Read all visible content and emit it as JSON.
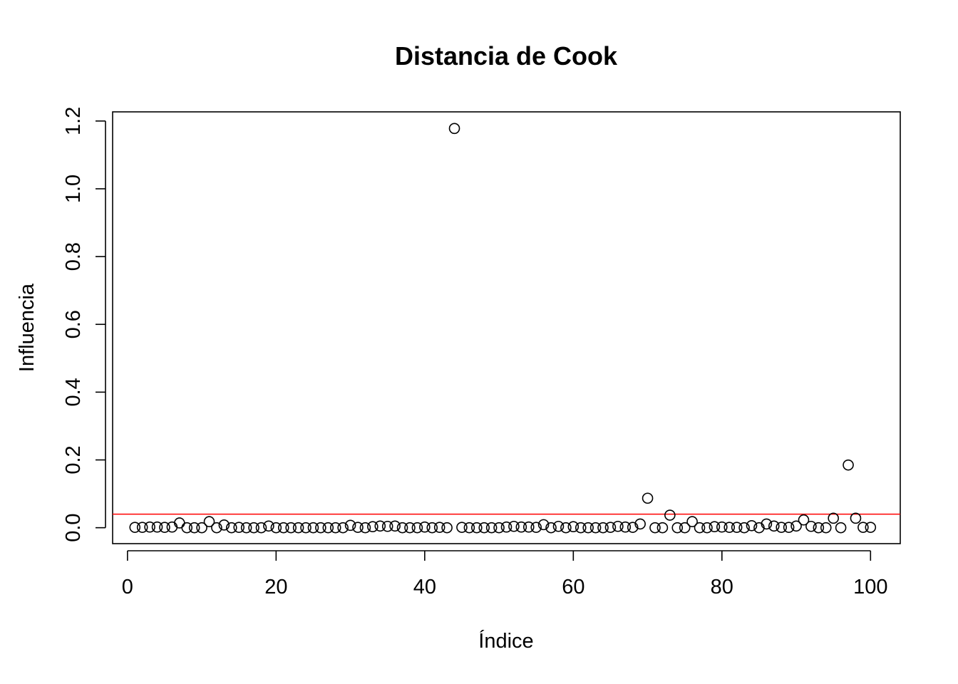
{
  "chart_data": {
    "type": "scatter",
    "title": "Distancia de Cook",
    "xlabel": "Índice",
    "ylabel": "Influencia",
    "xlim": [
      -2,
      104
    ],
    "ylim": [
      -0.047,
      1.227
    ],
    "xticks": [
      0,
      20,
      40,
      60,
      80,
      100
    ],
    "xtick_labels": [
      "0",
      "20",
      "40",
      "60",
      "80",
      "100"
    ],
    "yticks": [
      0.0,
      0.2,
      0.4,
      0.6,
      0.8,
      1.0,
      1.2
    ],
    "ytick_labels": [
      "0.0",
      "0.2",
      "0.4",
      "0.6",
      "0.8",
      "1.0",
      "1.2"
    ],
    "grid": false,
    "point_style": "open-circle",
    "point_color": "#000000",
    "x": [
      1,
      2,
      3,
      4,
      5,
      6,
      7,
      8,
      9,
      10,
      11,
      12,
      13,
      14,
      15,
      16,
      17,
      18,
      19,
      20,
      21,
      22,
      23,
      24,
      25,
      26,
      27,
      28,
      29,
      30,
      31,
      32,
      33,
      34,
      35,
      36,
      37,
      38,
      39,
      40,
      41,
      42,
      43,
      44,
      45,
      46,
      47,
      48,
      49,
      50,
      51,
      52,
      53,
      54,
      55,
      56,
      57,
      58,
      59,
      60,
      61,
      62,
      63,
      64,
      65,
      66,
      67,
      68,
      69,
      70,
      71,
      72,
      73,
      74,
      75,
      76,
      77,
      78,
      79,
      80,
      81,
      82,
      83,
      84,
      85,
      86,
      87,
      88,
      89,
      90,
      91,
      92,
      93,
      94,
      95,
      96,
      97,
      98,
      99,
      100
    ],
    "y": [
      0.001,
      0.001,
      0.002,
      0.002,
      0.001,
      0.002,
      0.014,
      0.0,
      0.0,
      0.0,
      0.018,
      0.0,
      0.008,
      0.0,
      0.001,
      0.0,
      0.0,
      0.0,
      0.005,
      0.0,
      0.0,
      0.0,
      0.0,
      0.0,
      0.0,
      0.0,
      0.0,
      0.0,
      0.0,
      0.007,
      0.001,
      0.0,
      0.003,
      0.005,
      0.004,
      0.005,
      0.0,
      0.0,
      0.0,
      0.002,
      0.0,
      0.001,
      0.0,
      1.178,
      0.001,
      0.0,
      0.0,
      0.0,
      0.0,
      0.0,
      0.002,
      0.004,
      0.002,
      0.002,
      0.001,
      0.009,
      0.0,
      0.004,
      0.0,
      0.003,
      0.0,
      0.0,
      0.0,
      0.0,
      0.001,
      0.004,
      0.002,
      0.001,
      0.011,
      0.087,
      0.0,
      0.0,
      0.037,
      0.0,
      0.0,
      0.018,
      0.0,
      0.0,
      0.003,
      0.002,
      0.001,
      0.001,
      0.0,
      0.006,
      0.0,
      0.011,
      0.005,
      0.001,
      0.001,
      0.005,
      0.023,
      0.004,
      0.0,
      0.0,
      0.028,
      0.0,
      0.185,
      0.028,
      0.001,
      0.001
    ],
    "reference_line": {
      "y": 0.04,
      "color": "#ff0000"
    }
  }
}
